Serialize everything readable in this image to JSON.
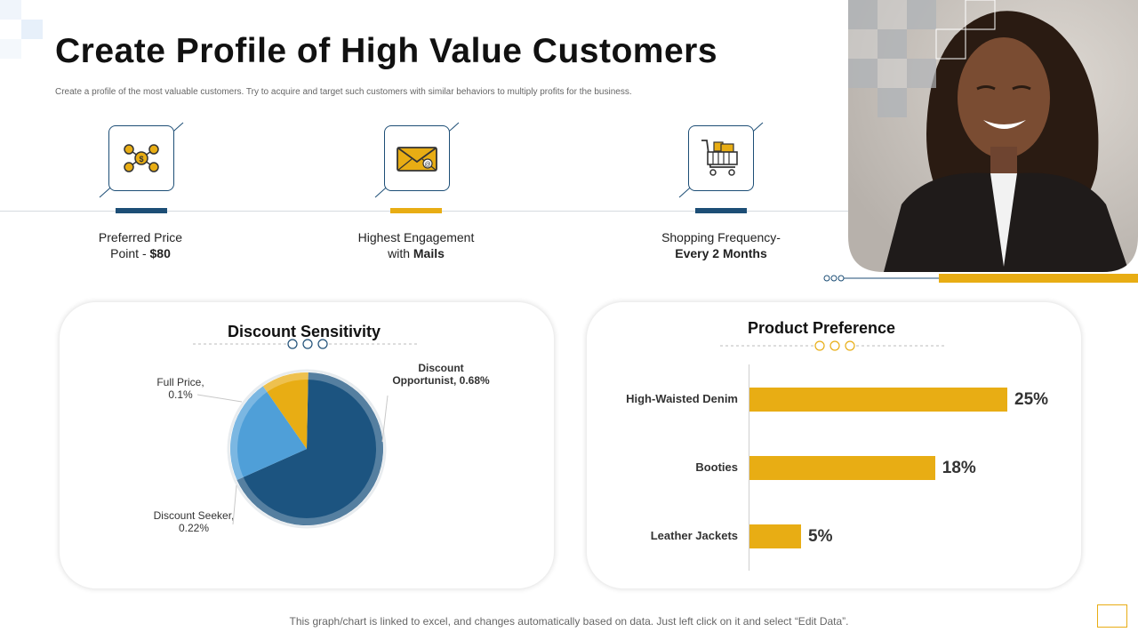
{
  "header": {
    "title": "Create Profile of High Value Customers",
    "subtitle": "Create a profile of the most valuable customers. Try to acquire and target such customers with similar behaviors to multiply profits for the business."
  },
  "features": [
    {
      "line1": "Preferred Price",
      "line2_prefix": "Point - ",
      "line2_bold": "$80",
      "icon": "money-network-icon"
    },
    {
      "line1": "Highest Engagement",
      "line2_prefix": "with ",
      "line2_bold": "Mails",
      "icon": "mail-icon"
    },
    {
      "line1": "Shopping Frequency-",
      "line2_prefix": "",
      "line2_bold": "Every 2 Months",
      "icon": "shopping-cart-icon"
    }
  ],
  "colors": {
    "navy": "#1d4e76",
    "gold": "#e8ad14",
    "light_blue": "#4f9fd8",
    "dark_blue": "#1c5480"
  },
  "chart_data": [
    {
      "type": "pie",
      "title": "Discount Sensitivity",
      "slices": [
        {
          "label": "Discount Opportunist",
          "label_text": "Discount Opportunist,",
          "value_text": "0.68%",
          "value": 0.68,
          "color": "#1c5480"
        },
        {
          "label": "Discount Seeker",
          "label_text": "Discount Seeker,",
          "value_text": "0.22%",
          "value": 0.22,
          "color": "#4f9fd8"
        },
        {
          "label": "Full Price",
          "label_text": "Full Price,",
          "value_text": "0.1%",
          "value": 0.1,
          "color": "#e8ad14"
        }
      ]
    },
    {
      "type": "bar",
      "orientation": "horizontal",
      "title": "Product Preference",
      "categories": [
        "High-Waisted Denim",
        "Booties",
        "Leather Jackets"
      ],
      "values": [
        25,
        18,
        5
      ],
      "value_labels": [
        "25%",
        "18%",
        "5%"
      ],
      "xlim": [
        0,
        28
      ]
    }
  ],
  "footer": {
    "note": "This graph/chart is linked to excel,  and changes automatically based on data. Just left click on it and select “Edit Data”."
  }
}
